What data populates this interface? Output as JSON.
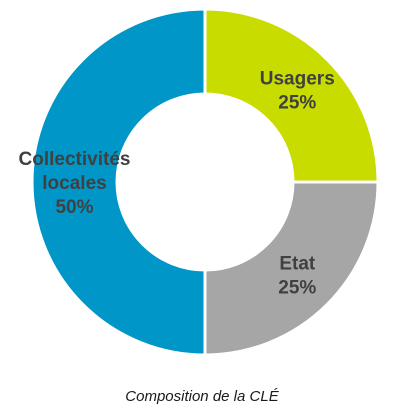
{
  "chart_data": {
    "type": "pie",
    "style": "donut",
    "title": "",
    "slices": [
      {
        "name": "Usagers",
        "value": 25,
        "label": "25%",
        "color": "#c8dc00"
      },
      {
        "name": "Etat",
        "value": 25,
        "label": "25%",
        "color": "#a6a6a6"
      },
      {
        "name": "Collectivités locales",
        "value": 50,
        "label": "50%",
        "color": "#0096c8"
      }
    ],
    "start": "top",
    "direction": "clockwise"
  },
  "caption": "Composition de la CLÉ"
}
